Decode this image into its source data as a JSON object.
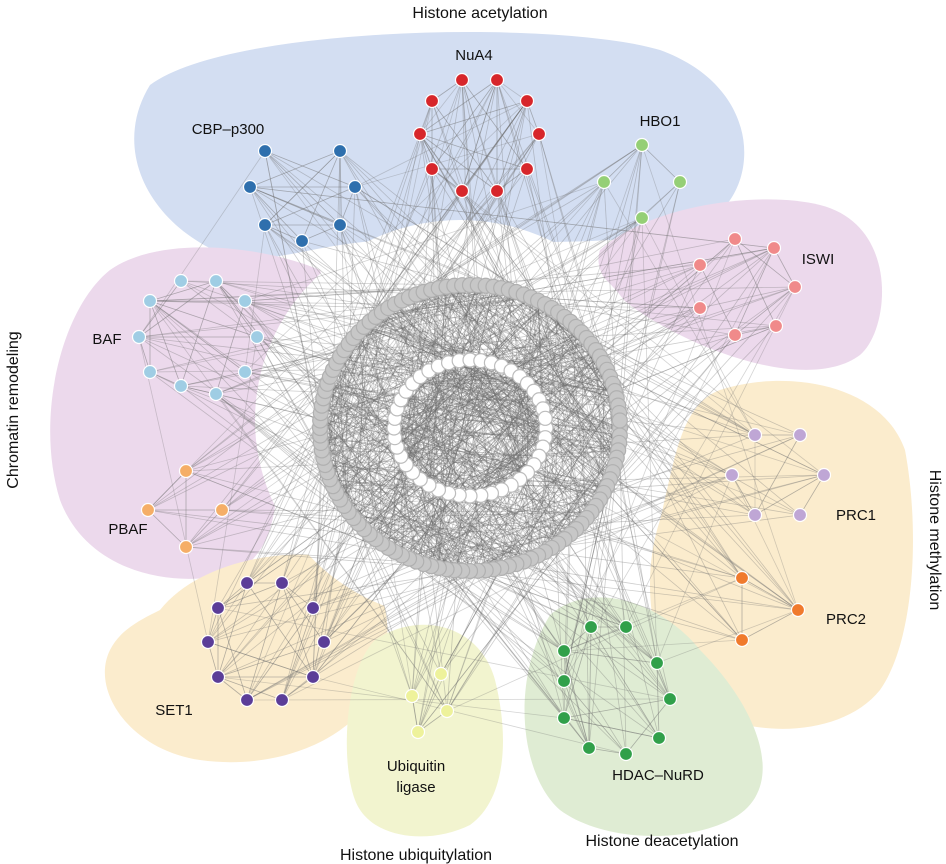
{
  "categories": {
    "acetylation": "Histone acetylation",
    "remodeling": "Chromatin remodeling",
    "methylation": "Histone methylation",
    "deacetylation": "Histone deacetylation",
    "ubiquitylation": "Histone ubiquitylation"
  },
  "complexes": {
    "nua4": "NuA4",
    "cbp": "CBP–p300",
    "hbo1": "HBO1",
    "iswi": "ISWI",
    "baf": "BAF",
    "pbaf": "PBAF",
    "prc1": "PRC1",
    "prc2": "PRC2",
    "set1": "SET1",
    "ubiq_line1": "Ubiquitin",
    "ubiq_line2": "ligase",
    "hdac": "HDAC–NuRD"
  },
  "colors": {
    "acetylation_bg": "#d3def2",
    "remodeling_bg": "#ecd9ec",
    "methylation_bg": "#fbeccd",
    "deacetylation_bg": "#dfecd3",
    "ubiquitylation_bg": "#f2f4cf",
    "nua4": "#d7262b",
    "cbp": "#2e6fad",
    "hbo1": "#95cf76",
    "iswi": "#f08a8a",
    "baf": "#9fcde4",
    "pbaf": "#f5ae67",
    "prc1": "#bfa6d5",
    "prc2": "#f07a2c",
    "set1": "#5b3d98",
    "ubiq": "#eef29b",
    "hdac": "#31a04a",
    "hub": "#c7c7c7",
    "inner": "#ffffff",
    "edge": "#6f6f6f"
  }
}
